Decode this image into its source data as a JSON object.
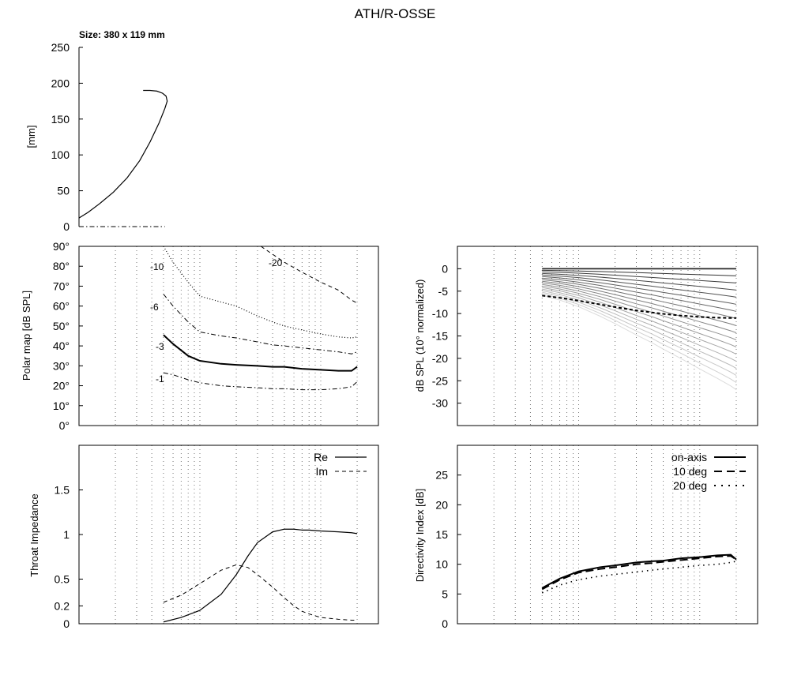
{
  "title": "ATH/R-OSSE",
  "chart_data": [
    {
      "type": "line",
      "panel": "profile",
      "subtitle": "Size: 380 x 119 mm",
      "ylabel": "[mm]",
      "ylim": [
        0,
        250
      ],
      "yticks": [
        0,
        50,
        100,
        150,
        200,
        250
      ],
      "series": [
        {
          "style": "solid",
          "x": [
            0,
            8,
            18,
            30,
            42,
            53,
            62,
            70,
            75,
            77,
            76,
            73,
            68,
            62,
            56
          ],
          "y": [
            12,
            20,
            32,
            48,
            68,
            92,
            118,
            145,
            165,
            175,
            182,
            186,
            189,
            190,
            190
          ]
        },
        {
          "style": "dashdot",
          "x": [
            0,
            75
          ],
          "y": [
            0,
            0
          ]
        }
      ]
    },
    {
      "type": "line",
      "panel": "polar_map",
      "ylabel": "Polar map [dB SPL]",
      "ylim": [
        0,
        90
      ],
      "yticks": [
        "0°",
        "10°",
        "20°",
        "30°",
        "40°",
        "50°",
        "60°",
        "70°",
        "80°",
        "90°"
      ],
      "xscale": "log",
      "contours": [
        {
          "label": "-1",
          "style": "dashdot",
          "x": [
            500,
            600,
            800,
            1000,
            1500,
            2000,
            3000,
            4000,
            5000,
            7000,
            10000,
            14000,
            18000,
            20000
          ],
          "y": [
            26.5,
            25.5,
            23,
            21.5,
            20,
            19.5,
            19,
            18.5,
            18.5,
            18,
            18,
            18.5,
            19.5,
            22
          ]
        },
        {
          "label": "-3",
          "style": "solid-thick",
          "x": [
            500,
            600,
            800,
            1000,
            1500,
            2000,
            3000,
            4000,
            5000,
            7000,
            10000,
            14000,
            18000,
            20000
          ],
          "y": [
            45.5,
            41,
            35,
            32.5,
            31,
            30.5,
            30,
            29.5,
            29.5,
            28.5,
            28,
            27.5,
            27.5,
            29.5
          ]
        },
        {
          "label": "-6",
          "style": "dashdot",
          "x": [
            500,
            600,
            800,
            1000,
            1500,
            2000,
            3000,
            4000,
            5000,
            7000,
            10000,
            14000,
            18000,
            20000
          ],
          "y": [
            66,
            60,
            52,
            47,
            45,
            44,
            42,
            40.5,
            40,
            39,
            38,
            37,
            36,
            37
          ]
        },
        {
          "label": "-10",
          "style": "dotted",
          "x": [
            500,
            600,
            800,
            1000,
            1500,
            2000,
            3000,
            4000,
            5000,
            7000,
            10000,
            14000,
            18000,
            20000
          ],
          "y": [
            90,
            82,
            72,
            65,
            62,
            60,
            55,
            52,
            50,
            48,
            46,
            44.5,
            44,
            44.5
          ]
        },
        {
          "label": "-20",
          "style": "dashed",
          "x": [
            3200,
            4000,
            5000,
            7000,
            10000,
            14000,
            18000,
            20000
          ],
          "y": [
            90,
            86,
            82,
            77,
            72,
            68,
            63,
            61.5
          ]
        }
      ],
      "contour_labels": [
        "-1",
        "-3",
        "-6",
        "-10",
        "-20"
      ]
    },
    {
      "type": "line",
      "panel": "normalized_spl",
      "ylabel": "dB SPL (10° normalized)",
      "ylim": [
        -35,
        5
      ],
      "yticks": [
        0,
        -5,
        -10,
        -15,
        -20,
        -25,
        -30
      ],
      "xscale": "log",
      "fan_count": 18,
      "fan_end_min": -27,
      "highlight_end": -11,
      "highlight_start": -6
    },
    {
      "type": "line",
      "panel": "throat_impedance",
      "ylabel": "Throat Impedance",
      "ylim": [
        0,
        2
      ],
      "yticks": [
        "0",
        "0.2",
        "0.5",
        "1",
        "1.5"
      ],
      "ytick_values": [
        0,
        0.2,
        0.5,
        1,
        1.5
      ],
      "xscale": "log",
      "series": [
        {
          "name": "Re",
          "style": "solid",
          "x": [
            500,
            700,
            1000,
            1500,
            2000,
            2500,
            3000,
            4000,
            5000,
            6000,
            7000,
            8000,
            10000,
            14000,
            18000,
            20000
          ],
          "y": [
            0.02,
            0.07,
            0.15,
            0.33,
            0.55,
            0.76,
            0.91,
            1.03,
            1.06,
            1.06,
            1.05,
            1.05,
            1.04,
            1.03,
            1.02,
            1.01
          ]
        },
        {
          "name": "Im",
          "style": "dashed",
          "x": [
            500,
            700,
            1000,
            1500,
            2000,
            2500,
            3000,
            4000,
            5000,
            6000,
            7000,
            8000,
            10000,
            14000,
            18000,
            20000
          ],
          "y": [
            0.24,
            0.32,
            0.45,
            0.6,
            0.66,
            0.63,
            0.55,
            0.41,
            0.29,
            0.2,
            0.14,
            0.11,
            0.07,
            0.05,
            0.04,
            0.04
          ]
        }
      ]
    },
    {
      "type": "line",
      "panel": "directivity_index",
      "ylabel": "Directivity Index [dB]",
      "ylim": [
        0,
        30
      ],
      "yticks": [
        0,
        5,
        10,
        15,
        20,
        25
      ],
      "xscale": "log",
      "series": [
        {
          "name": "on-axis",
          "style": "solid",
          "x": [
            500,
            700,
            1000,
            1500,
            2000,
            3000,
            4000,
            5000,
            7000,
            10000,
            14000,
            18000,
            20000
          ],
          "y": [
            6,
            7.6,
            8.8,
            9.5,
            9.8,
            10.3,
            10.5,
            10.6,
            11,
            11.2,
            11.5,
            11.6,
            10.8
          ]
        },
        {
          "name": "10 deg",
          "style": "dashed",
          "x": [
            500,
            700,
            1000,
            1500,
            2000,
            3000,
            4000,
            5000,
            7000,
            10000,
            14000,
            18000,
            20000
          ],
          "y": [
            5.8,
            7.4,
            8.6,
            9.2,
            9.5,
            10,
            10.2,
            10.4,
            10.7,
            11,
            11.3,
            11.4,
            10.8
          ]
        },
        {
          "name": "20 deg",
          "style": "dotted",
          "x": [
            500,
            700,
            1000,
            1500,
            2000,
            3000,
            4000,
            5000,
            7000,
            10000,
            14000,
            18000,
            20000
          ],
          "y": [
            5.2,
            6.5,
            7.4,
            8,
            8.3,
            8.7,
            9,
            9.2,
            9.5,
            9.8,
            10,
            10.3,
            10.5
          ]
        }
      ]
    }
  ]
}
